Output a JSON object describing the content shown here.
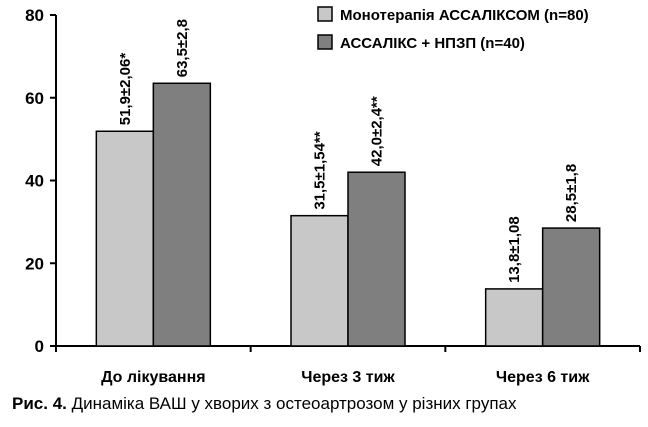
{
  "chart_data": {
    "type": "bar",
    "categories": [
      "До лікування",
      "Через 3 тиж",
      "Через 6 тиж"
    ],
    "series": [
      {
        "name": "Монотерапія АССАЛІКСОМ (n=80)",
        "values": [
          51.9,
          31.5,
          13.8
        ],
        "labels": [
          "51,9±2,06*",
          "31,5±1,54**",
          "13,8±1,08"
        ],
        "color": "#c8c8c8"
      },
      {
        "name": "АССАЛІКС + НПЗП (n=40)",
        "values": [
          63.5,
          42.0,
          28.5
        ],
        "labels": [
          "63,5±2,8",
          "42,0±2,4**",
          "28,5±1,8"
        ],
        "color": "#7f7f7f"
      }
    ],
    "ylim": [
      0,
      80
    ],
    "yticks": [
      0,
      20,
      40,
      60,
      80
    ],
    "grid": false,
    "legend": "top-right",
    "xlabel": "",
    "ylabel": "",
    "title": ""
  },
  "caption": {
    "label": "Рис. 4.",
    "text": " Динаміка ВАШ у хворих з остеоартрозом у різних групах"
  }
}
